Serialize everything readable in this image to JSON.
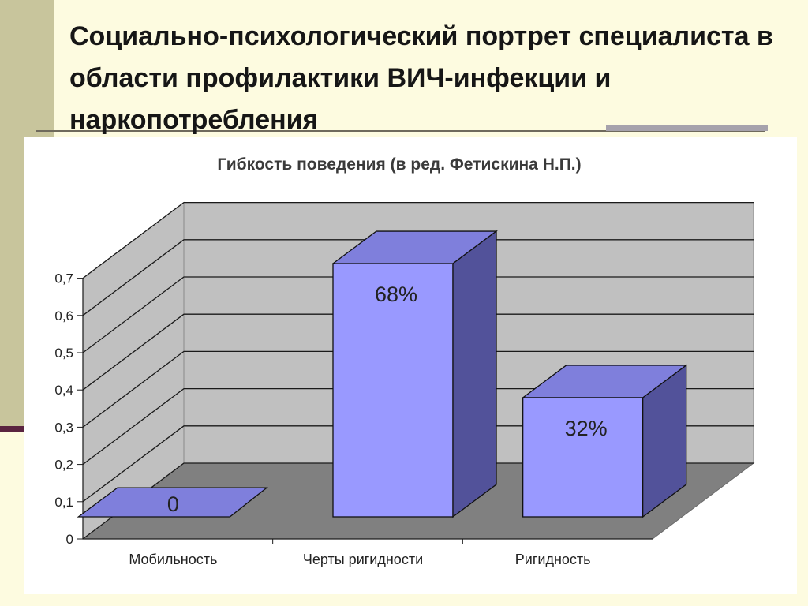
{
  "slide": {
    "title": "Социально-психологический портрет специалиста в области профилактики ВИЧ-инфекции и наркопотребления"
  },
  "colors": {
    "background": "#fdfbe0",
    "band": "#c8c59c",
    "bar_front": "#9999ff",
    "bar_top": "#7f7fdc",
    "bar_side": "#52529a",
    "wall": "#c0c0c0",
    "floor": "#808080"
  },
  "chart_data": {
    "type": "bar",
    "title": "Гибкость поведения (в ред. Фетискина Н.П.)",
    "categories": [
      "Мобильность",
      "Черты ригидности",
      "Ригидность"
    ],
    "values": [
      0,
      0.68,
      0.32
    ],
    "data_labels": [
      "0",
      "68%",
      "32%"
    ],
    "y_ticks": [
      "0",
      "0,1",
      "0,2",
      "0,3",
      "0,4",
      "0,5",
      "0,6",
      "0,7"
    ],
    "ylim": [
      0,
      0.7
    ],
    "grid": true,
    "legend": "none",
    "style": "3d-column"
  }
}
